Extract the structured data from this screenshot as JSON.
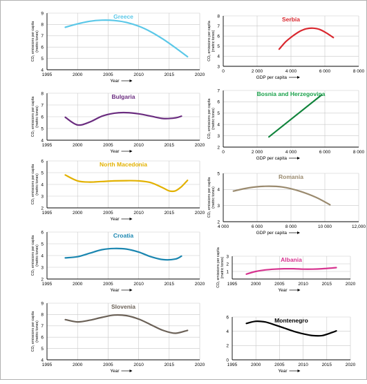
{
  "chart_data": [
    {
      "type": "line",
      "title": "Greece",
      "title_color": "#5bc8e8",
      "line_color": "#5bc8e8",
      "xlabel": "Year",
      "ylabel": "CO₂ emissions per capita (metric tones)",
      "xlim": [
        1995,
        2020
      ],
      "ylim": [
        4,
        9
      ],
      "xticks": [
        1995,
        2000,
        2005,
        2010,
        2015,
        2020
      ],
      "xtick_labels": [
        "1995",
        "2000",
        "2005",
        "2010",
        "2015",
        "2020"
      ],
      "yticks": [
        4,
        5,
        6,
        7,
        8,
        9
      ],
      "ytick_labels": [
        "4",
        "5",
        "6",
        "7",
        "8",
        "9"
      ],
      "x": [
        1998,
        2000,
        2002,
        2004,
        2006,
        2008,
        2010,
        2012,
        2014,
        2016,
        2018
      ],
      "y": [
        7.75,
        8.05,
        8.28,
        8.38,
        8.35,
        8.18,
        7.85,
        7.35,
        6.7,
        5.95,
        5.15
      ]
    },
    {
      "type": "line",
      "title": "Serbia",
      "title_color": "#d9282f",
      "line_color": "#d9282f",
      "xlabel": "GDP per capita",
      "ylabel": "CO₂ emissions per capita (metric tones)",
      "xlim": [
        0,
        8000
      ],
      "ylim": [
        3,
        8
      ],
      "xticks": [
        0,
        2000,
        4000,
        6000,
        8000
      ],
      "xtick_labels": [
        "0",
        "2 000",
        "4 000",
        "6 000",
        "8 000"
      ],
      "yticks": [
        3,
        4,
        5,
        6,
        7,
        8
      ],
      "ytick_labels": [
        "3",
        "4",
        "5",
        "6",
        "7",
        "8"
      ],
      "x": [
        3300,
        3700,
        4100,
        4500,
        4900,
        5300,
        5700,
        6100,
        6500
      ],
      "y": [
        4.7,
        5.45,
        6.0,
        6.45,
        6.72,
        6.78,
        6.65,
        6.3,
        5.85
      ]
    },
    {
      "type": "line",
      "title": "Bulgaria",
      "title_color": "#6a2c7f",
      "line_color": "#6a2c7f",
      "xlabel": "Year",
      "ylabel": "CO₂ emissions per capita (metric tones)",
      "xlim": [
        1995,
        2020
      ],
      "ylim": [
        4,
        8
      ],
      "xticks": [
        1995,
        2000,
        2005,
        2010,
        2015,
        2020
      ],
      "xtick_labels": [
        "1995",
        "2000",
        "2005",
        "2010",
        "2015",
        "2020"
      ],
      "yticks": [
        4,
        5,
        6,
        7,
        8
      ],
      "ytick_labels": [
        "4",
        "5",
        "6",
        "7",
        "8"
      ],
      "x": [
        1998,
        2000,
        2002,
        2004,
        2006,
        2008,
        2010,
        2012,
        2014,
        2016,
        2017
      ],
      "y": [
        5.95,
        5.3,
        5.55,
        6.05,
        6.3,
        6.35,
        6.25,
        6.05,
        5.85,
        5.9,
        6.05
      ]
    },
    {
      "type": "line",
      "title": "Bosnia and Herzegovina",
      "title_color": "#19a14a",
      "line_color": "#11843c",
      "xlabel": "GDP per capita",
      "ylabel": "CO₂ emissions per capita (metric tones)",
      "xlim": [
        0,
        8000
      ],
      "ylim": [
        2,
        7
      ],
      "xticks": [
        0,
        2000,
        4000,
        6000,
        8000
      ],
      "xtick_labels": [
        "0",
        "2 000",
        "4 000",
        "6 000",
        "8 000"
      ],
      "yticks": [
        2,
        3,
        4,
        5,
        6,
        7
      ],
      "ytick_labels": [
        "2",
        "3",
        "4",
        "5",
        "6",
        "7"
      ],
      "x": [
        2700,
        5800
      ],
      "y": [
        2.9,
        6.6
      ]
    },
    {
      "type": "line",
      "title": "North Macedonia",
      "title_color": "#e2b100",
      "line_color": "#e2b100",
      "xlabel": "Year",
      "ylabel": "CO₂ emissions per capita (metric tones)",
      "xlim": [
        1995,
        2020
      ],
      "ylim": [
        2,
        6
      ],
      "xticks": [
        1995,
        2000,
        2005,
        2010,
        2015,
        2020
      ],
      "xtick_labels": [
        "1995",
        "2000",
        "2005",
        "2010",
        "2015",
        "2020"
      ],
      "yticks": [
        2,
        3,
        4,
        5,
        6
      ],
      "ytick_labels": [
        "2",
        "3",
        "4",
        "5",
        "6"
      ],
      "x": [
        1998,
        2000,
        2002,
        2004,
        2006,
        2008,
        2010,
        2012,
        2014,
        2015,
        2016,
        2017,
        2018
      ],
      "y": [
        4.8,
        4.3,
        4.2,
        4.25,
        4.3,
        4.32,
        4.3,
        4.15,
        3.7,
        3.45,
        3.45,
        3.8,
        4.35
      ]
    },
    {
      "type": "line",
      "title": "Romania",
      "title_color": "#9a8a6e",
      "line_color": "#9a8a6e",
      "xlabel": "GDP per capita",
      "ylabel": "CO₂ emissions per capita (metric tones)",
      "xlim": [
        4000,
        12000
      ],
      "ylim": [
        2,
        5
      ],
      "xticks": [
        4000,
        6000,
        8000,
        10000,
        12000
      ],
      "xtick_labels": [
        "4 000",
        "6 000",
        "8 000",
        "10 000",
        "12,000"
      ],
      "yticks": [
        2,
        3,
        4,
        5
      ],
      "ytick_labels": [
        "2",
        "3",
        "4",
        "5"
      ],
      "x": [
        4600,
        5500,
        6500,
        7500,
        8500,
        9500,
        10300
      ],
      "y": [
        3.9,
        4.1,
        4.2,
        4.15,
        3.9,
        3.5,
        3.05
      ]
    },
    {
      "type": "line",
      "title": "Croatia",
      "title_color": "#1a86b0",
      "line_color": "#1a86b0",
      "xlabel": "Year",
      "ylabel": "CO₂ emissions per capita (metric tones)",
      "xlim": [
        1995,
        2020
      ],
      "ylim": [
        2,
        6
      ],
      "xticks": [
        1995,
        2000,
        2005,
        2010,
        2015,
        2020
      ],
      "xtick_labels": [
        "1995",
        "2000",
        "2005",
        "2010",
        "2015",
        "2020"
      ],
      "yticks": [
        2,
        3,
        4,
        5,
        6
      ],
      "ytick_labels": [
        "2",
        "3",
        "4",
        "5",
        "6"
      ],
      "x": [
        1998,
        2000,
        2002,
        2004,
        2006,
        2008,
        2010,
        2012,
        2014,
        2016,
        2017
      ],
      "y": [
        3.8,
        3.9,
        4.2,
        4.5,
        4.6,
        4.55,
        4.3,
        3.9,
        3.65,
        3.7,
        3.95
      ]
    },
    {
      "type": "line",
      "title": "Albania",
      "title_color": "#d6338f",
      "line_color": "#d6338f",
      "xlabel": "Year",
      "ylabel": "CO₂ emissions per capita (metric tones)",
      "xlim": [
        1995,
        2020
      ],
      "ylim": [
        0,
        3
      ],
      "xticks": [
        1995,
        2000,
        2005,
        2010,
        2015,
        2020
      ],
      "xtick_labels": [
        "1995",
        "2000",
        "2005",
        "2010",
        "2015",
        "2020"
      ],
      "yticks": [
        1,
        2,
        3
      ],
      "ytick_labels": [
        "1",
        "2",
        "3"
      ],
      "x": [
        1998,
        2000,
        2002,
        2004,
        2006,
        2008,
        2010,
        2012,
        2014,
        2016,
        2017
      ],
      "y": [
        0.65,
        1.0,
        1.2,
        1.3,
        1.35,
        1.35,
        1.3,
        1.3,
        1.35,
        1.45,
        1.5
      ]
    },
    {
      "type": "line",
      "title": "Slovenia",
      "title_color": "#6b6157",
      "line_color": "#6b6157",
      "xlabel": "Year",
      "ylabel": "CO₂ emissions per capita (metric tones)",
      "xlim": [
        1995,
        2020
      ],
      "ylim": [
        4,
        9
      ],
      "xticks": [
        1995,
        2000,
        2005,
        2010,
        2015,
        2020
      ],
      "xtick_labels": [
        "1995",
        "2000",
        "2005",
        "2010",
        "2015",
        "2020"
      ],
      "yticks": [
        4,
        5,
        6,
        7,
        8,
        9
      ],
      "ytick_labels": [
        "4",
        "5",
        "6",
        "7",
        "8",
        "9"
      ],
      "x": [
        1998,
        2000,
        2002,
        2004,
        2006,
        2008,
        2010,
        2012,
        2014,
        2016,
        2018
      ],
      "y": [
        7.55,
        7.35,
        7.5,
        7.75,
        7.95,
        7.9,
        7.6,
        7.1,
        6.6,
        6.35,
        6.6
      ]
    },
    {
      "type": "line",
      "title": "Montenegro",
      "title_color": "#000000",
      "line_color": "#000000",
      "xlabel": "Year",
      "ylabel": "",
      "xlim": [
        1995,
        2020
      ],
      "ylim": [
        0,
        6
      ],
      "xticks": [
        1995,
        2000,
        2005,
        2010,
        2015,
        2020
      ],
      "xtick_labels": [
        "1995",
        "2000",
        "2005",
        "2010",
        "2015",
        "2020"
      ],
      "yticks": [
        0,
        2,
        4,
        6
      ],
      "ytick_labels": [
        "0",
        "2",
        "4",
        "6"
      ],
      "x": [
        1998,
        2000,
        2002,
        2004,
        2006,
        2008,
        2010,
        2012,
        2014,
        2016,
        2017
      ],
      "y": [
        5.1,
        5.4,
        5.3,
        4.9,
        4.45,
        4.0,
        3.65,
        3.4,
        3.4,
        3.8,
        4.05
      ]
    }
  ]
}
